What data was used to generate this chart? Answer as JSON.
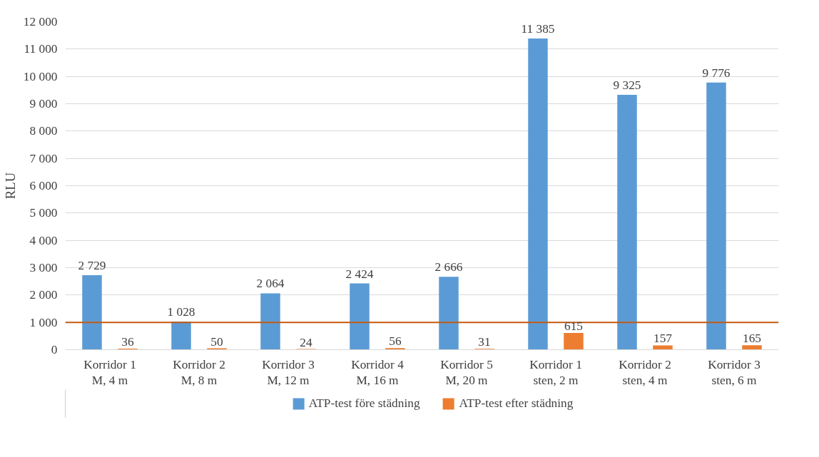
{
  "chart_data": {
    "type": "bar",
    "ylabel": "RLU",
    "categories": [
      "Korridor 1\nM, 4 m",
      "Korridor 2\nM, 8 m",
      "Korridor 3\nM, 12 m",
      "Korridor 4\nM, 16 m",
      "Korridor 5\nM, 20 m",
      "Korridor 1\nsten, 2 m",
      "Korridor 2\nsten, 4 m",
      "Korridor 3\nsten, 6 m"
    ],
    "series": [
      {
        "name": "ATP-test före städning",
        "color": "#5b9bd5",
        "values": [
          2729,
          1028,
          2064,
          2424,
          2666,
          11385,
          9325,
          9776
        ],
        "value_labels": [
          "2 729",
          "1 028",
          "2 064",
          "2 424",
          "2 666",
          "11 385",
          "9 325",
          "9 776"
        ]
      },
      {
        "name": "ATP-test efter städning",
        "color": "#ed7d31",
        "values": [
          36,
          50,
          24,
          56,
          31,
          615,
          157,
          165
        ],
        "value_labels": [
          "36",
          "50",
          "24",
          "56",
          "31",
          "615",
          "157",
          "165"
        ]
      }
    ],
    "ylim": [
      0,
      12000
    ],
    "yticks": [
      {
        "value": 0,
        "label": "0"
      },
      {
        "value": 1000,
        "label": "1 000"
      },
      {
        "value": 2000,
        "label": "2 000"
      },
      {
        "value": 3000,
        "label": "3 000"
      },
      {
        "value": 4000,
        "label": "4 000"
      },
      {
        "value": 5000,
        "label": "5 000"
      },
      {
        "value": 6000,
        "label": "6 000"
      },
      {
        "value": 7000,
        "label": "7 000"
      },
      {
        "value": 8000,
        "label": "8 000"
      },
      {
        "value": 9000,
        "label": "9 000"
      },
      {
        "value": 10000,
        "label": "10 000"
      },
      {
        "value": 11000,
        "label": "11 000"
      },
      {
        "value": 12000,
        "label": "12 000"
      }
    ],
    "ref_lines": [
      {
        "axis": "y",
        "value": 1000,
        "color": "#c55a11"
      }
    ],
    "grid": "y",
    "legend": "bottom"
  }
}
